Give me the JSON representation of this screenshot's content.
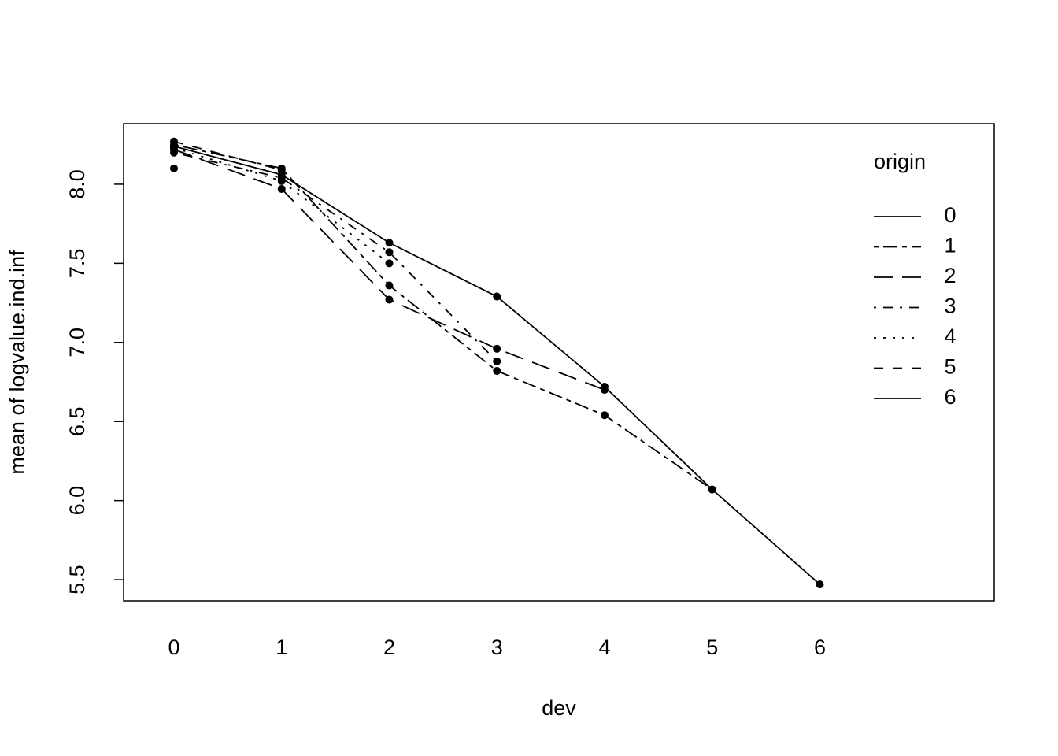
{
  "chart_data": {
    "type": "line",
    "x_label": "dev",
    "y_label": "mean of  logvalue.ind.inf",
    "legend_title": "origin",
    "legend_position": "top-right",
    "x": [
      0,
      1,
      2,
      3,
      4,
      5,
      6
    ],
    "xlim": [
      -0.468,
      7.62
    ],
    "xticks": [
      0,
      1,
      2,
      3,
      4,
      5,
      6
    ],
    "ylim": [
      5.366,
      8.383
    ],
    "yticks": [
      5.5,
      {
        "value": 6,
        "label": "6.0"
      },
      6.5,
      {
        "value": 7,
        "label": "7.0"
      },
      7.5,
      {
        "value": 8,
        "label": "8.0"
      }
    ],
    "series": [
      {
        "name": "0",
        "color": "#000000",
        "linetype": "solid",
        "values": [
          8.24,
          8.06,
          7.63,
          7.29,
          6.72,
          6.07,
          5.47
        ]
      },
      {
        "name": "1",
        "color": "#000000",
        "linetype": "twodash",
        "values": [
          8.25,
          8.1,
          7.36,
          6.82,
          6.54,
          6.07,
          null
        ]
      },
      {
        "name": "2",
        "color": "#000000",
        "linetype": "longdash",
        "values": [
          8.22,
          7.97,
          7.27,
          6.96,
          6.7,
          null,
          null
        ]
      },
      {
        "name": "3",
        "color": "#000000",
        "linetype": "dotdash",
        "values": [
          8.2,
          8.04,
          7.57,
          6.88,
          null,
          null,
          null
        ]
      },
      {
        "name": "4",
        "color": "#000000",
        "linetype": "dotted",
        "values": [
          8.23,
          8.02,
          7.5,
          null,
          null,
          null,
          null
        ]
      },
      {
        "name": "5",
        "color": "#000000",
        "linetype": "dashed",
        "values": [
          8.27,
          8.09,
          null,
          null,
          null,
          null,
          null
        ]
      },
      {
        "name": "6",
        "color": "#000000",
        "linetype": "solid",
        "values": [
          8.1,
          null,
          null,
          null,
          null,
          null,
          null
        ]
      }
    ]
  }
}
